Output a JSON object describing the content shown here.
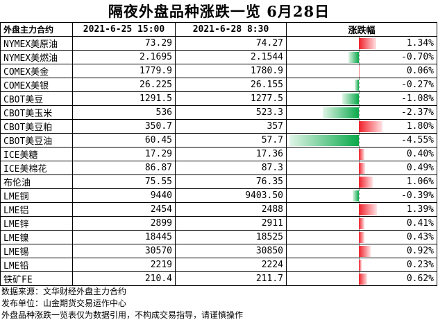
{
  "title": "隔夜外盘品种涨跌一览  6月28日",
  "header": {
    "col_name": "外盘主力合约",
    "col_prev": "2021-6-25 15:00",
    "col_curr": "2021-6-28 8:30",
    "col_change": "涨跌幅"
  },
  "rows": [
    {
      "name": "NYMEX美原油",
      "prev": "73.29",
      "curr": "74.27",
      "pct_text": "1.34%",
      "pct": 1.34
    },
    {
      "name": "NYMEX美燃油",
      "prev": "2.1695",
      "curr": "2.1544",
      "pct_text": "-0.70%",
      "pct": -0.7
    },
    {
      "name": "COMEX美金",
      "prev": "1779.9",
      "curr": "1780.9",
      "pct_text": "0.06%",
      "pct": 0.06
    },
    {
      "name": "COMEX美银",
      "prev": "26.225",
      "curr": "26.155",
      "pct_text": "-0.27%",
      "pct": -0.27
    },
    {
      "name": "CBOT美豆",
      "prev": "1291.5",
      "curr": "1277.5",
      "pct_text": "-1.08%",
      "pct": -1.08
    },
    {
      "name": "CBOT美玉米",
      "prev": "536",
      "curr": "523.3",
      "pct_text": "-2.37%",
      "pct": -2.37
    },
    {
      "name": "CBOT美豆粕",
      "prev": "350.7",
      "curr": "357",
      "pct_text": "1.80%",
      "pct": 1.8
    },
    {
      "name": "CBOT美豆油",
      "prev": "60.45",
      "curr": "57.7",
      "pct_text": "-4.55%",
      "pct": -4.55
    },
    {
      "name": "ICE美糖",
      "prev": "17.29",
      "curr": "17.36",
      "pct_text": "0.40%",
      "pct": 0.4
    },
    {
      "name": "ICE美棉花",
      "prev": "86.87",
      "curr": "87.3",
      "pct_text": "0.49%",
      "pct": 0.49
    },
    {
      "name": "布伦油",
      "prev": "75.55",
      "curr": "76.35",
      "pct_text": "1.06%",
      "pct": 1.06
    },
    {
      "name": "LME铜",
      "prev": "9440",
      "curr": "9403.50",
      "pct_text": "-0.39%",
      "pct": -0.39
    },
    {
      "name": "LME铝",
      "prev": "2454",
      "curr": "2488",
      "pct_text": "1.39%",
      "pct": 1.39
    },
    {
      "name": "LME锌",
      "prev": "2899",
      "curr": "2911",
      "pct_text": "0.41%",
      "pct": 0.41
    },
    {
      "name": "LME镍",
      "prev": "18445",
      "curr": "18525",
      "pct_text": "0.43%",
      "pct": 0.43
    },
    {
      "name": "LME锡",
      "prev": "30570",
      "curr": "30850",
      "pct_text": "0.92%",
      "pct": 0.92
    },
    {
      "name": "LME铅",
      "prev": "2219",
      "curr": "2224",
      "pct_text": "0.23%",
      "pct": 0.23
    },
    {
      "name": "铁矿FE",
      "prev": "210.4",
      "curr": "211.7",
      "pct_text": "0.62%",
      "pct": 0.62
    }
  ],
  "notes": {
    "source": "数据来源：文华财经外盘主力合约",
    "publisher": "发布单位：山金期货交易运作中心",
    "disclaimer": "外盘品种涨跌一览表仅为数据引用，不构成交易指导，请谨慎操作"
  },
  "colors": {
    "positive": "#f0202a",
    "negative": "#0aa84a"
  }
}
